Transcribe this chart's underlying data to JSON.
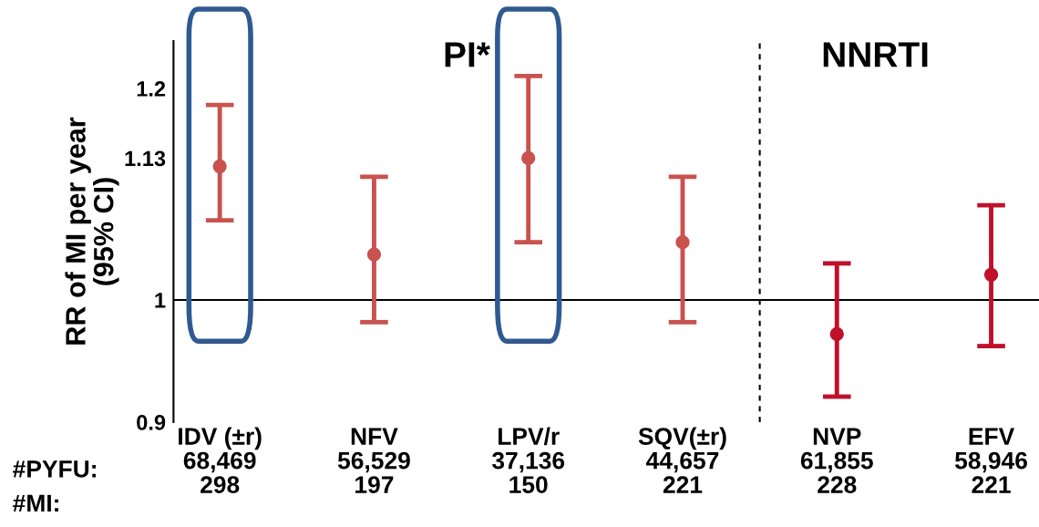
{
  "chart_data": {
    "type": "scatter",
    "ylabel": "RR of MI per year\n(95% CI)",
    "categories": [
      "IDV (±r)\n68,469\n298",
      "NFV\n56,529\n197",
      "LPV/r\n37,136\n150",
      "SQV(±r)\n44,657\n221",
      "NVP\n61,855\n228",
      "EFV\n58,946\n221"
    ],
    "values": [
      1.122,
      1.04,
      1.13,
      1.051,
      0.971,
      1.022
    ],
    "errors": [
      [
        1.071,
        1.183
      ],
      [
        0.981,
        1.112
      ],
      [
        1.051,
        1.213
      ],
      [
        0.981,
        1.112
      ],
      [
        0.92,
        1.032
      ],
      [
        0.961,
        1.085
      ]
    ],
    "colors": [
      "#c9524f",
      "#c9524f",
      "#c9524f",
      "#c9524f",
      "#c0102a",
      "#c0102a"
    ],
    "log": true,
    "ylim": [
      0.9,
      1.25
    ],
    "yticks": [
      0.9,
      1,
      1.13,
      1.2
    ],
    "grid": false,
    "marker": "circle",
    "ref_lines": [
      {
        "axis": "y",
        "value": 1,
        "color": "#000000",
        "line_style": "solid"
      }
    ],
    "annotations": [
      "PI*",
      "NNRTI",
      "#PYFU:",
      "#MI:"
    ]
  }
}
